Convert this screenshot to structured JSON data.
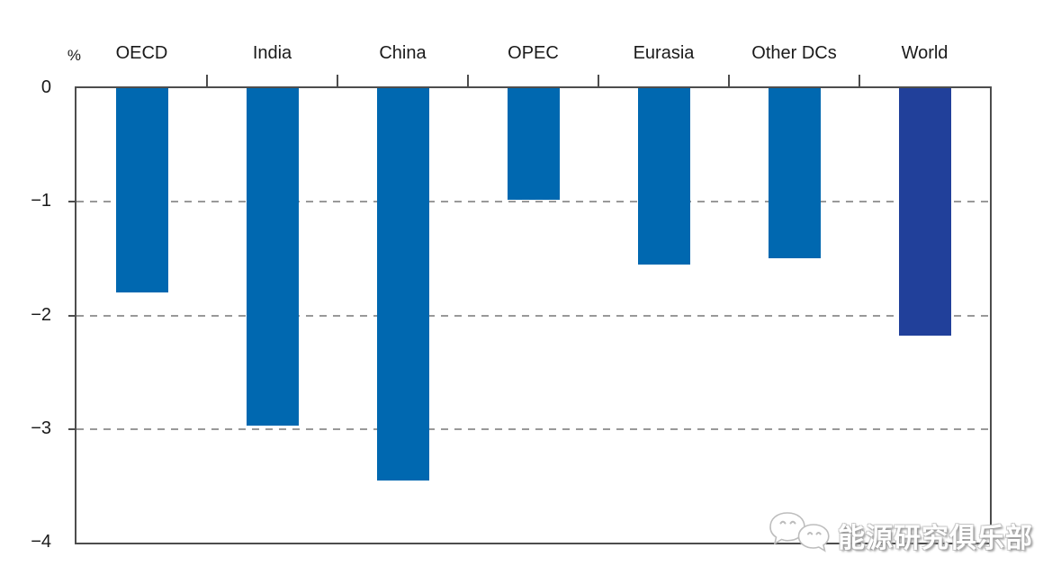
{
  "figure": {
    "background": "#ffffff"
  },
  "percent_label": "%",
  "watermark": {
    "text": "能源研究俱乐部",
    "icon": "wechat-icon"
  },
  "chart_data": {
    "type": "bar",
    "title": "",
    "unit_label": "%",
    "categories": [
      "OECD",
      "India",
      "China",
      "OPEC",
      "Eurasia",
      "Other DCs",
      "World"
    ],
    "values": [
      -1.8,
      -2.97,
      -3.45,
      -0.98,
      -1.55,
      -1.5,
      -2.18
    ],
    "bar_colors": [
      "#0068b0",
      "#0068b0",
      "#0068b0",
      "#0068b0",
      "#0068b0",
      "#0068b0",
      "#21409a"
    ],
    "xlabel": "",
    "ylabel": "%",
    "ylim": [
      -4,
      0
    ],
    "yticks": [
      0,
      -1,
      -2,
      -3,
      -4
    ],
    "gridline_values": [
      -1,
      -2,
      -3
    ],
    "grid_style": "dashed",
    "grid_on": true,
    "legend": "none",
    "axis_color": "#4d4d4d",
    "grid_color": "#999999",
    "label_color": "#1a1a1a"
  }
}
